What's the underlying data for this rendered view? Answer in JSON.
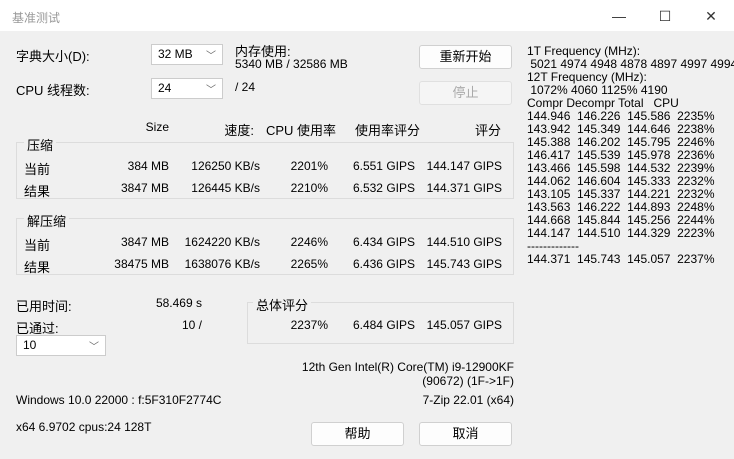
{
  "window": {
    "title": "基准测试",
    "minimize": "—",
    "maximize": "☐",
    "close": "✕"
  },
  "dict": {
    "label": "字典大小(D):",
    "value": "32 MB"
  },
  "threads": {
    "label": "CPU 线程数:",
    "value": "24",
    "max": "/ 24"
  },
  "memory": {
    "label": "内存使用:",
    "value": "5340 MB / 32586 MB"
  },
  "buttons": {
    "restart": "重新开始",
    "stop": "停止",
    "help": "帮助",
    "cancel": "取消"
  },
  "columns": {
    "size": "Size",
    "speed": "速度:",
    "cpu": "CPU 使用率",
    "rating_usage": "使用率评分",
    "rating": "评分"
  },
  "compress": {
    "label": "压缩",
    "rows": [
      {
        "label": "当前",
        "size": "384 MB",
        "speed": "126250 KB/s",
        "cpu": "2201%",
        "usage": "6.551 GIPS",
        "rating": "144.147 GIPS"
      },
      {
        "label": "结果",
        "size": "3847 MB",
        "speed": "126445 KB/s",
        "cpu": "2210%",
        "usage": "6.532 GIPS",
        "rating": "144.371 GIPS"
      }
    ]
  },
  "decompress": {
    "label": "解压缩",
    "rows": [
      {
        "label": "当前",
        "size": "3847 MB",
        "speed": "1624220 KB/s",
        "cpu": "2246%",
        "usage": "6.434 GIPS",
        "rating": "144.510 GIPS"
      },
      {
        "label": "结果",
        "size": "38475 MB",
        "speed": "1638076 KB/s",
        "cpu": "2265%",
        "usage": "6.436 GIPS",
        "rating": "145.743 GIPS"
      }
    ]
  },
  "elapsed": {
    "label": "已用时间:",
    "value": "58.469 s"
  },
  "passes": {
    "label": "已通过:",
    "value": "10 /",
    "select": "10"
  },
  "total": {
    "label": "总体评分",
    "cpu": "2237%",
    "usage": "6.484 GIPS",
    "rating": "145.057 GIPS"
  },
  "cpu_name": "12th Gen Intel(R) Core(TM) i9-12900KF",
  "cpu_id": "(90672) (1F->1F)",
  "os": "Windows 10.0 22000 : f:5F310F2774C",
  "version": "7-Zip 22.01 (x64)",
  "arch": "x64 6.9702 cpus:24 128T",
  "right_lines": [
    "1T Frequency (MHz):",
    " 5021 4974 4948 4878 4897 4997 4994",
    "12T Frequency (MHz):",
    " 1072% 4060 1125% 4190",
    "Compr Decompr Total   CPU",
    "144.946  146.226  145.586  2235%",
    "143.942  145.349  144.646  2238%",
    "145.388  146.202  145.795  2246%",
    "146.417  145.539  145.978  2236%",
    "143.466  145.598  144.532  2239%",
    "144.062  146.604  145.333  2232%",
    "143.105  145.337  144.221  2232%",
    "143.563  146.222  144.893  2248%",
    "144.668  145.844  145.256  2244%",
    "144.147  144.510  144.329  2223%",
    "-------------",
    "144.371  145.743  145.057  2237%"
  ]
}
